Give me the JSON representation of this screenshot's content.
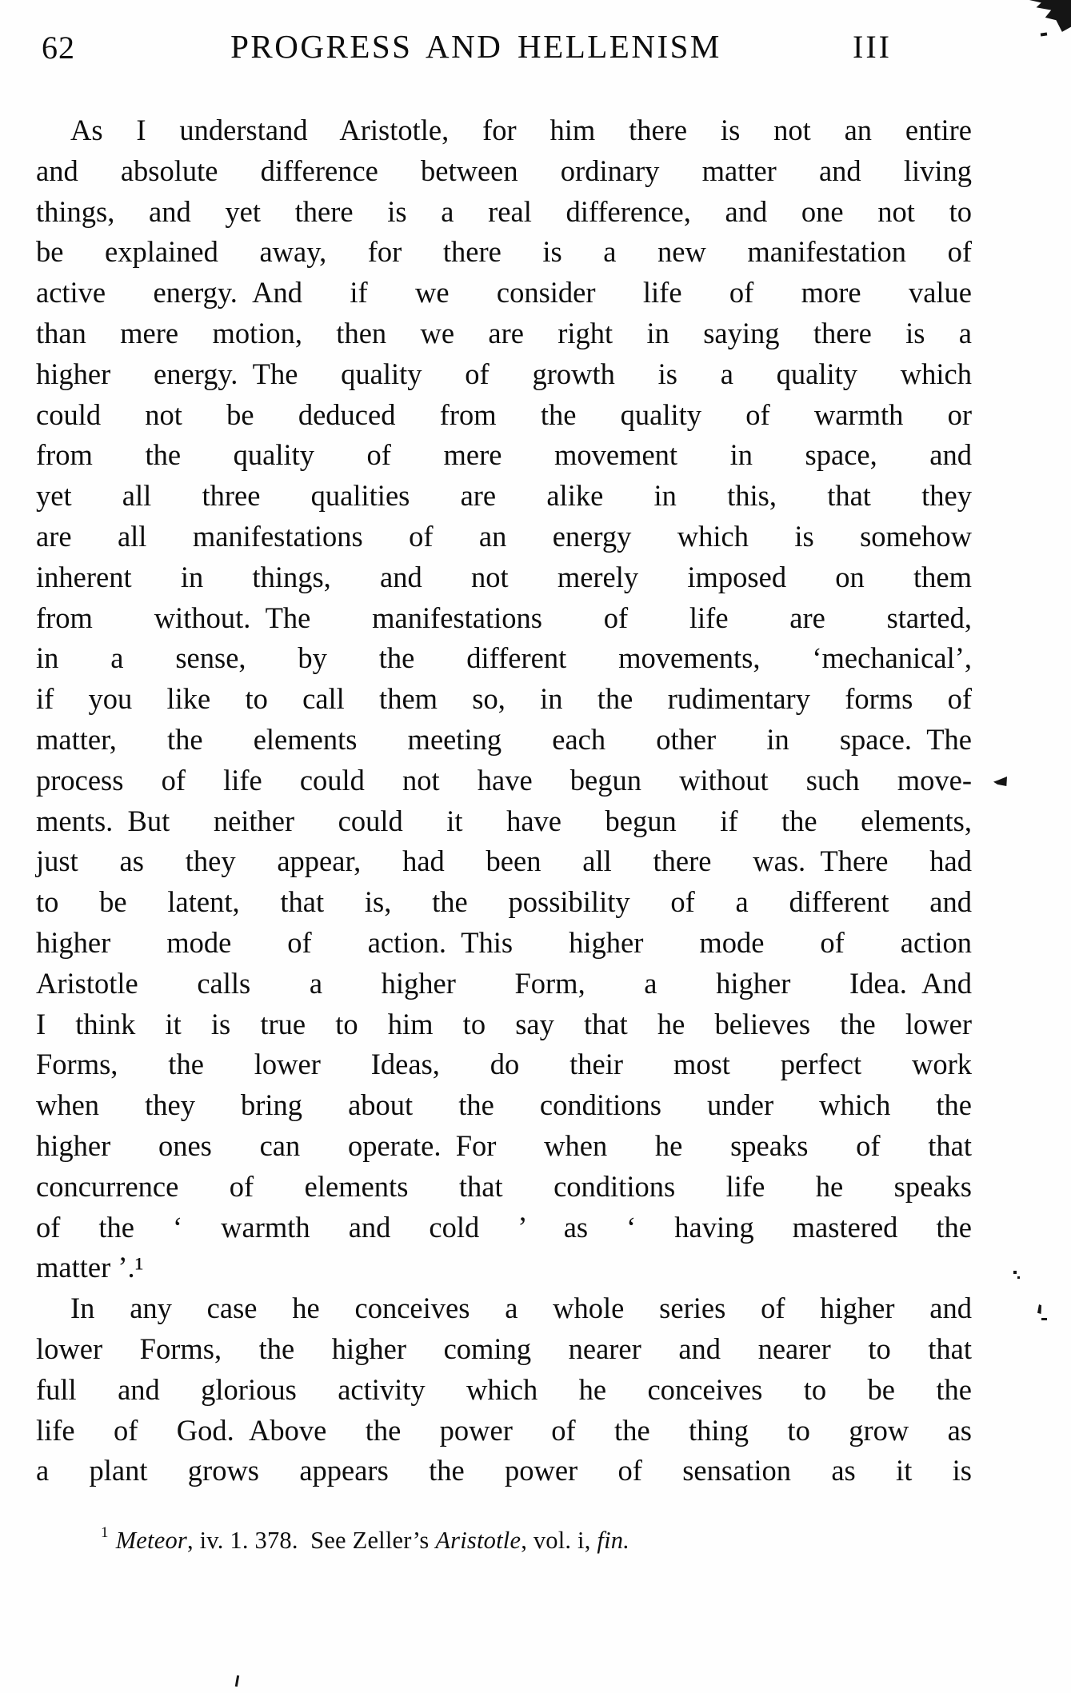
{
  "page": {
    "number": "62",
    "running_title": "PROGRESS AND HELLENISM",
    "chapter_numeral": "III"
  },
  "body": {
    "paragraphs": [
      {
        "lines": [
          {
            "text": "As I understand Aristotle, for him there is not an entire",
            "indent": true
          },
          {
            "text": "and absolute difference between ordinary matter and living"
          },
          {
            "text": "things, and yet there is a real difference, and one not to"
          },
          {
            "text": "be explained away, for there is a new manifestation of"
          },
          {
            "text": "active energy. And if we consider life of more value"
          },
          {
            "text": "than mere motion, then we are right in saying there is a"
          },
          {
            "text": "higher energy. The quality of growth is a quality which"
          },
          {
            "text": "could not be deduced from the quality of warmth or"
          },
          {
            "text": "from the quality of mere movement in space, and"
          },
          {
            "text": "yet all three qualities are alike in this, that they"
          },
          {
            "text": "are all manifestations of an energy which is somehow"
          },
          {
            "text": "inherent in things, and not merely imposed on them"
          },
          {
            "text": "from without. The manifestations of life are started,"
          },
          {
            "text": "in a sense, by the different movements, ‘mechanical’,"
          },
          {
            "text": "if you like to call them so, in the rudimentary forms of"
          },
          {
            "text": "matter, the elements meeting each other in space. The"
          },
          {
            "text": "process of life could not have begun without such move-"
          },
          {
            "text": "ments. But neither could it have begun if the elements,"
          },
          {
            "text": "just as they appear, had been all there was. There had"
          },
          {
            "text": "to be latent, that is, the possibility of a different and"
          },
          {
            "text": "higher mode of action. This higher mode of action"
          },
          {
            "text": "Aristotle calls a higher Form, a higher Idea. And"
          },
          {
            "text": "I think it is true to him to say that he believes the lower"
          },
          {
            "text": "Forms, the lower Ideas, do their most perfect work"
          },
          {
            "text": "when they bring about the conditions under which the"
          },
          {
            "text": "higher ones can operate. For when he speaks of that"
          },
          {
            "text": "concurrence of elements that conditions life he speaks"
          },
          {
            "text": "of the ‘ warmth and cold ’ as ‘ having mastered the"
          },
          {
            "text": "matter ’.¹",
            "last": true
          }
        ]
      },
      {
        "lines": [
          {
            "text": "In any case he conceives a whole series of higher and",
            "indent": true
          },
          {
            "text": "lower Forms, the higher coming nearer and nearer to that"
          },
          {
            "text": "full and glorious activity which he conceives to be the"
          },
          {
            "text": "life of God. Above the power of the thing to grow as"
          },
          {
            "text": "a plant grows appears the power of sensation as it is"
          }
        ]
      }
    ]
  },
  "footnote": {
    "marker": "1",
    "segments": [
      {
        "text": "Meteor",
        "italic": true
      },
      {
        "text": ", iv. 1. 378. See Zeller’s ",
        "italic": false
      },
      {
        "text": "Aristotle",
        "italic": true
      },
      {
        "text": ", vol. i, ",
        "italic": false
      },
      {
        "text": "fin.",
        "italic": true
      }
    ]
  },
  "colors": {
    "ink": "#0e0e0e",
    "paper": "#fefefe"
  }
}
